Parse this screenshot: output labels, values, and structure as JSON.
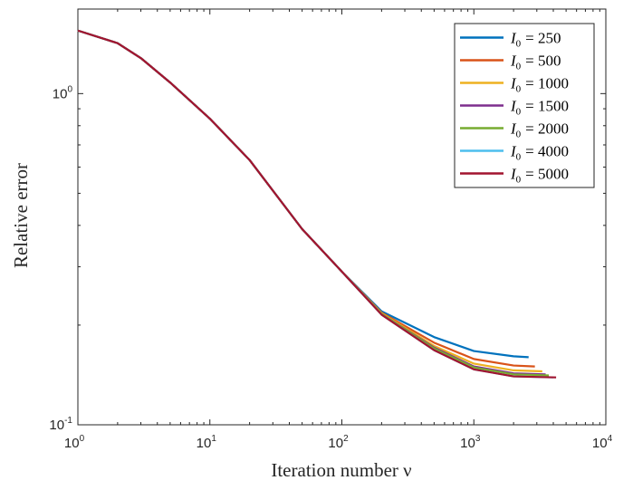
{
  "chart_data": {
    "type": "line",
    "xscale": "log",
    "yscale": "log",
    "xlim": [
      1,
      10000
    ],
    "ylim": [
      0.1,
      1.8
    ],
    "grid": false,
    "legend_position": "top-right",
    "xlabel": "Iteration number ν",
    "ylabel": "Relative error",
    "x_ticks": [
      {
        "base": "10",
        "exp": "0"
      },
      {
        "base": "10",
        "exp": "1"
      },
      {
        "base": "10",
        "exp": "2"
      },
      {
        "base": "10",
        "exp": "3"
      },
      {
        "base": "10",
        "exp": "4"
      }
    ],
    "y_ticks": [
      {
        "base": "10",
        "exp": "-1",
        "value": 0.1
      },
      {
        "base": "10",
        "exp": "0",
        "value": 1
      }
    ],
    "series": [
      {
        "name": "I0 = 250",
        "legend_var": "I",
        "legend_sub": "0",
        "legend_value": "= 250",
        "color": "#0072BD",
        "points": [
          [
            1,
            1.55
          ],
          [
            2,
            1.42
          ],
          [
            3,
            1.28
          ],
          [
            5,
            1.08
          ],
          [
            10,
            0.84
          ],
          [
            20,
            0.63
          ],
          [
            50,
            0.39
          ],
          [
            100,
            0.29
          ],
          [
            200,
            0.22
          ],
          [
            500,
            0.184
          ],
          [
            1000,
            0.167
          ],
          [
            2000,
            0.161
          ],
          [
            2600,
            0.16
          ]
        ]
      },
      {
        "name": "I0 = 500",
        "legend_var": "I",
        "legend_sub": "0",
        "legend_value": "= 500",
        "color": "#D95319",
        "points": [
          [
            1,
            1.55
          ],
          [
            2,
            1.42
          ],
          [
            3,
            1.28
          ],
          [
            5,
            1.08
          ],
          [
            10,
            0.84
          ],
          [
            20,
            0.63
          ],
          [
            50,
            0.39
          ],
          [
            100,
            0.29
          ],
          [
            200,
            0.218
          ],
          [
            500,
            0.177
          ],
          [
            1000,
            0.158
          ],
          [
            2000,
            0.151
          ],
          [
            2900,
            0.15
          ]
        ]
      },
      {
        "name": "I0 = 1000",
        "legend_var": "I",
        "legend_sub": "0",
        "legend_value": "= 1000",
        "color": "#EDB120",
        "points": [
          [
            1,
            1.55
          ],
          [
            2,
            1.42
          ],
          [
            3,
            1.28
          ],
          [
            5,
            1.08
          ],
          [
            10,
            0.84
          ],
          [
            20,
            0.63
          ],
          [
            50,
            0.39
          ],
          [
            100,
            0.29
          ],
          [
            200,
            0.217
          ],
          [
            500,
            0.173
          ],
          [
            1000,
            0.153
          ],
          [
            2000,
            0.146
          ],
          [
            3300,
            0.145
          ]
        ]
      },
      {
        "name": "I0 = 1500",
        "legend_var": "I",
        "legend_sub": "0",
        "legend_value": "= 1500",
        "color": "#7E2F8E",
        "points": [
          [
            1,
            1.55
          ],
          [
            2,
            1.42
          ],
          [
            3,
            1.28
          ],
          [
            5,
            1.08
          ],
          [
            10,
            0.84
          ],
          [
            20,
            0.63
          ],
          [
            50,
            0.39
          ],
          [
            100,
            0.29
          ],
          [
            200,
            0.216
          ],
          [
            500,
            0.171
          ],
          [
            1000,
            0.15
          ],
          [
            2000,
            0.143
          ],
          [
            3500,
            0.142
          ]
        ]
      },
      {
        "name": "I0 = 2000",
        "legend_var": "I",
        "legend_sub": "0",
        "legend_value": "= 2000",
        "color": "#77AC30",
        "points": [
          [
            1,
            1.55
          ],
          [
            2,
            1.42
          ],
          [
            3,
            1.28
          ],
          [
            5,
            1.08
          ],
          [
            10,
            0.84
          ],
          [
            20,
            0.63
          ],
          [
            50,
            0.39
          ],
          [
            100,
            0.29
          ],
          [
            200,
            0.216
          ],
          [
            500,
            0.17
          ],
          [
            1000,
            0.149
          ],
          [
            2000,
            0.142
          ],
          [
            3700,
            0.141
          ]
        ]
      },
      {
        "name": "I0 = 4000",
        "legend_var": "I",
        "legend_sub": "0",
        "legend_value": "= 4000",
        "color": "#4DBEEE",
        "points": [
          [
            1,
            1.55
          ],
          [
            2,
            1.42
          ],
          [
            3,
            1.28
          ],
          [
            5,
            1.08
          ],
          [
            10,
            0.84
          ],
          [
            20,
            0.63
          ],
          [
            50,
            0.39
          ],
          [
            100,
            0.29
          ],
          [
            200,
            0.215
          ],
          [
            500,
            0.168
          ],
          [
            1000,
            0.147
          ],
          [
            2000,
            0.14
          ],
          [
            4000,
            0.139
          ]
        ]
      },
      {
        "name": "I0 = 5000",
        "legend_var": "I",
        "legend_sub": "0",
        "legend_value": "= 5000",
        "color": "#A2142F",
        "points": [
          [
            1,
            1.55
          ],
          [
            2,
            1.42
          ],
          [
            3,
            1.28
          ],
          [
            5,
            1.08
          ],
          [
            10,
            0.84
          ],
          [
            20,
            0.63
          ],
          [
            50,
            0.39
          ],
          [
            100,
            0.29
          ],
          [
            200,
            0.215
          ],
          [
            500,
            0.168
          ],
          [
            1000,
            0.147
          ],
          [
            2000,
            0.14
          ],
          [
            4200,
            0.139
          ]
        ]
      }
    ]
  }
}
